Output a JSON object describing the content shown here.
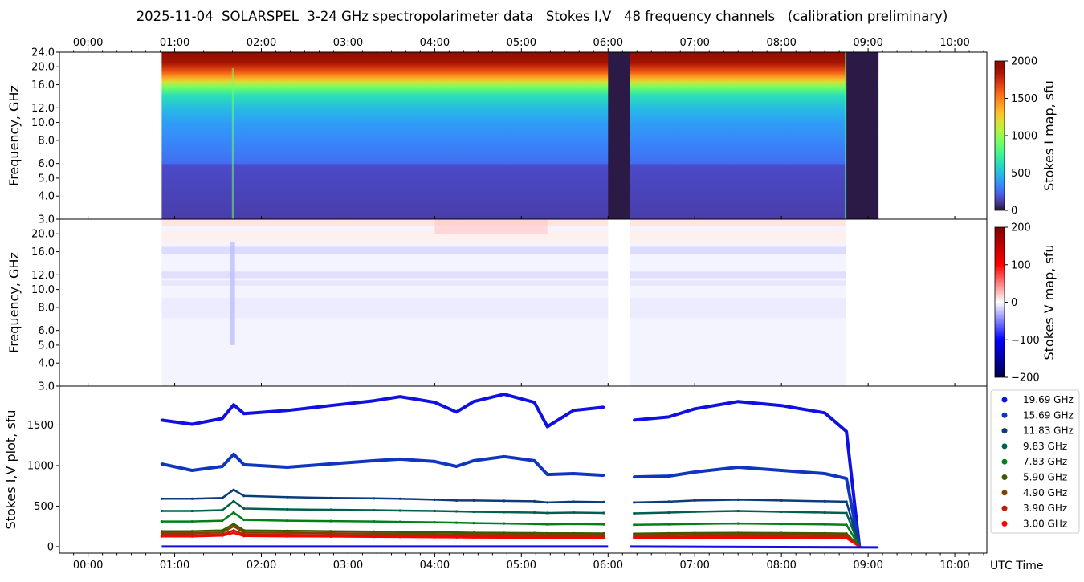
{
  "title": "2025-11-04  SOLARSPEL  3-24 GHz spectropolarimeter data   Stokes I,V   48 frequency channels   (calibration preliminary)",
  "time_ticks": [
    "00:00",
    "01:00",
    "02:00",
    "03:00",
    "04:00",
    "05:00",
    "06:00",
    "07:00",
    "08:00",
    "09:00",
    "10:00"
  ],
  "x_axis_label": "UTC Time",
  "chart_data": [
    {
      "type": "heatmap",
      "name": "stokes_i_map",
      "ylabel": "Frequency, GHz",
      "y_scale": "log",
      "ylim": [
        3.0,
        24.0
      ],
      "y_ticks": [
        "3.0",
        "4.0",
        "5.0",
        "6.0",
        "8.0",
        "10.0",
        "12.0",
        "16.0",
        "20.0",
        "24.0"
      ],
      "y_tick_values": [
        3,
        4,
        5,
        6,
        8,
        10,
        12,
        16,
        20,
        24
      ],
      "data_time_range_hours": [
        0.85,
        9.12
      ],
      "gaps_hours": [
        [
          6.0,
          6.25
        ],
        [
          8.75,
          9.12
        ]
      ],
      "colorbar": {
        "label": "Stokes I map, sfu",
        "min": 0,
        "max": 2000,
        "ticks": [
          "0",
          "500",
          "1000",
          "1500",
          "2000"
        ],
        "tick_values": [
          0,
          500,
          1000,
          1500,
          2000
        ],
        "colormap": "turbo"
      }
    },
    {
      "type": "heatmap",
      "name": "stokes_v_map",
      "ylabel": "Frequency, GHz",
      "y_scale": "log",
      "ylim": [
        3.0,
        24.0
      ],
      "y_ticks": [
        "3.0",
        "4.0",
        "5.0",
        "6.0",
        "8.0",
        "10.0",
        "12.0",
        "16.0",
        "20.0"
      ],
      "y_tick_values": [
        3,
        4,
        5,
        6,
        8,
        10,
        12,
        16,
        20
      ],
      "colorbar": {
        "label": "Stokes V map, sfu",
        "min": -200,
        "max": 200,
        "ticks": [
          "−200",
          "−100",
          "0",
          "100",
          "200"
        ],
        "tick_values": [
          -200,
          -100,
          0,
          100,
          200
        ],
        "colormap": "seismic"
      }
    },
    {
      "type": "scatter",
      "name": "stokes_iv_plot",
      "ylabel": "Stokes I,V plot, sfu",
      "ylim": [
        -80,
        1980
      ],
      "xlim_hours": [
        -0.33,
        10.37
      ],
      "y_ticks": [
        "0",
        "500",
        "1000",
        "1500"
      ],
      "y_tick_values": [
        0,
        500,
        1000,
        1500
      ],
      "legend_position": "right",
      "x": [
        0.85,
        1.2,
        1.55,
        1.68,
        1.8,
        2.3,
        2.8,
        3.3,
        3.6,
        4.0,
        4.25,
        4.45,
        4.8,
        5.15,
        5.3,
        5.6,
        5.95,
        6.3,
        6.7,
        7.0,
        7.5,
        8.0,
        8.5,
        8.75,
        8.9
      ],
      "series": [
        {
          "name": "19.69 GHz",
          "color": "#1010e0",
          "values": [
            1560,
            1510,
            1580,
            1750,
            1640,
            1680,
            1740,
            1800,
            1850,
            1780,
            1660,
            1790,
            1880,
            1780,
            1480,
            1680,
            1720,
            1560,
            1600,
            1700,
            1790,
            1740,
            1650,
            1420,
            0
          ]
        },
        {
          "name": "15.69 GHz",
          "color": "#1036c0",
          "values": [
            1020,
            940,
            990,
            1140,
            1010,
            980,
            1020,
            1060,
            1080,
            1050,
            990,
            1060,
            1110,
            1060,
            890,
            900,
            880,
            860,
            870,
            920,
            980,
            940,
            900,
            840,
            0
          ]
        },
        {
          "name": "11.83 GHz",
          "color": "#0c3c7c",
          "values": [
            590,
            590,
            600,
            700,
            625,
            610,
            600,
            595,
            590,
            580,
            570,
            570,
            565,
            560,
            545,
            555,
            550,
            545,
            555,
            570,
            580,
            570,
            560,
            555,
            0
          ]
        },
        {
          "name": "9.83 GHz",
          "color": "#006050",
          "values": [
            440,
            440,
            450,
            560,
            470,
            460,
            455,
            450,
            445,
            440,
            435,
            430,
            425,
            420,
            415,
            420,
            415,
            410,
            420,
            430,
            440,
            430,
            420,
            415,
            0
          ]
        },
        {
          "name": "7.83 GHz",
          "color": "#00801a",
          "values": [
            310,
            310,
            320,
            420,
            330,
            320,
            315,
            310,
            305,
            300,
            295,
            290,
            285,
            280,
            275,
            280,
            275,
            270,
            275,
            280,
            285,
            280,
            275,
            270,
            0
          ]
        },
        {
          "name": "5.90 GHz",
          "color": "#3c5a00",
          "values": [
            190,
            190,
            200,
            280,
            200,
            195,
            190,
            185,
            180,
            178,
            175,
            172,
            170,
            168,
            165,
            165,
            163,
            160,
            165,
            168,
            170,
            168,
            165,
            162,
            0
          ]
        },
        {
          "name": "4.90 GHz",
          "color": "#804000",
          "values": [
            165,
            165,
            175,
            250,
            175,
            170,
            165,
            160,
            158,
            155,
            152,
            150,
            148,
            146,
            144,
            145,
            143,
            140,
            145,
            148,
            150,
            148,
            145,
            142,
            0
          ]
        },
        {
          "name": "3.90 GHz",
          "color": "#c01c00",
          "values": [
            140,
            140,
            150,
            200,
            150,
            145,
            140,
            138,
            135,
            132,
            130,
            128,
            126,
            124,
            122,
            123,
            121,
            119,
            122,
            125,
            127,
            125,
            122,
            120,
            0
          ]
        },
        {
          "name": "3.00 GHz",
          "color": "#ff0000",
          "values": [
            125,
            125,
            135,
            170,
            130,
            126,
            124,
            121,
            119,
            116,
            114,
            112,
            110,
            108,
            106,
            107,
            105,
            103,
            106,
            109,
            111,
            109,
            106,
            104,
            0
          ]
        }
      ]
    }
  ]
}
